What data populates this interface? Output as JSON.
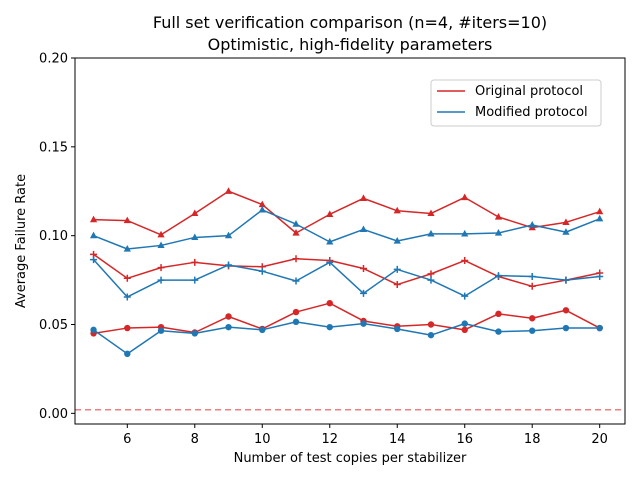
{
  "chart_data": {
    "type": "line",
    "title": "Full set verification comparison (n=4, #iters=10)",
    "subtitle": "Optimistic, high-fidelity parameters",
    "xlabel": "Number of test copies per stabilizer",
    "ylabel": "Average Failure Rate",
    "xlim": [
      4.45,
      20.75
    ],
    "ylim": [
      -0.006,
      0.2
    ],
    "xticks": [
      "6",
      "8",
      "10",
      "12",
      "14",
      "16",
      "18",
      "20"
    ],
    "yticks": [
      "0.00",
      "0.05",
      "0.10",
      "0.15",
      "0.20"
    ],
    "grid": false,
    "legend_position": "upper-right",
    "legend": [
      {
        "label": "Original protocol",
        "color": "#d62728"
      },
      {
        "label": "Modified protocol",
        "color": "#1f77b4"
      }
    ],
    "reference_line": {
      "y": 0.002,
      "color": "#f08080",
      "style": "dashed"
    },
    "x": [
      5,
      6,
      7,
      8,
      9,
      10,
      11,
      12,
      13,
      14,
      15,
      16,
      17,
      18,
      19,
      20
    ],
    "series": [
      {
        "protocol": "original",
        "marker": "triangle",
        "color": "#d62728",
        "values": [
          0.109,
          0.1085,
          0.1005,
          0.1125,
          0.125,
          0.1175,
          0.1015,
          0.112,
          0.121,
          0.114,
          0.1125,
          0.1215,
          0.1105,
          0.1045,
          0.1075,
          0.1135
        ]
      },
      {
        "protocol": "original",
        "marker": "plus",
        "color": "#d62728",
        "values": [
          0.0895,
          0.076,
          0.082,
          0.085,
          0.083,
          0.0825,
          0.087,
          0.086,
          0.0815,
          0.0725,
          0.0785,
          0.086,
          0.077,
          0.0715,
          0.075,
          0.079
        ]
      },
      {
        "protocol": "original",
        "marker": "circle",
        "color": "#d62728",
        "values": [
          0.045,
          0.048,
          0.0485,
          0.0455,
          0.0545,
          0.0475,
          0.057,
          0.062,
          0.052,
          0.049,
          0.05,
          0.047,
          0.056,
          0.0535,
          0.058,
          0.048
        ]
      },
      {
        "protocol": "modified",
        "marker": "triangle",
        "color": "#1f77b4",
        "values": [
          0.1,
          0.0925,
          0.0945,
          0.099,
          0.1,
          0.1145,
          0.1065,
          0.0965,
          0.1035,
          0.097,
          0.101,
          0.101,
          0.1015,
          0.106,
          0.102,
          0.1095
        ]
      },
      {
        "protocol": "modified",
        "marker": "plus",
        "color": "#1f77b4",
        "values": [
          0.0865,
          0.0655,
          0.075,
          0.075,
          0.0835,
          0.08,
          0.0745,
          0.085,
          0.0675,
          0.081,
          0.075,
          0.066,
          0.0775,
          0.077,
          0.075,
          0.077
        ]
      },
      {
        "protocol": "modified",
        "marker": "circle",
        "color": "#1f77b4",
        "values": [
          0.047,
          0.0335,
          0.0465,
          0.045,
          0.0485,
          0.047,
          0.0515,
          0.0485,
          0.0505,
          0.0475,
          0.044,
          0.0505,
          0.046,
          0.0465,
          0.048,
          0.048
        ]
      }
    ]
  }
}
